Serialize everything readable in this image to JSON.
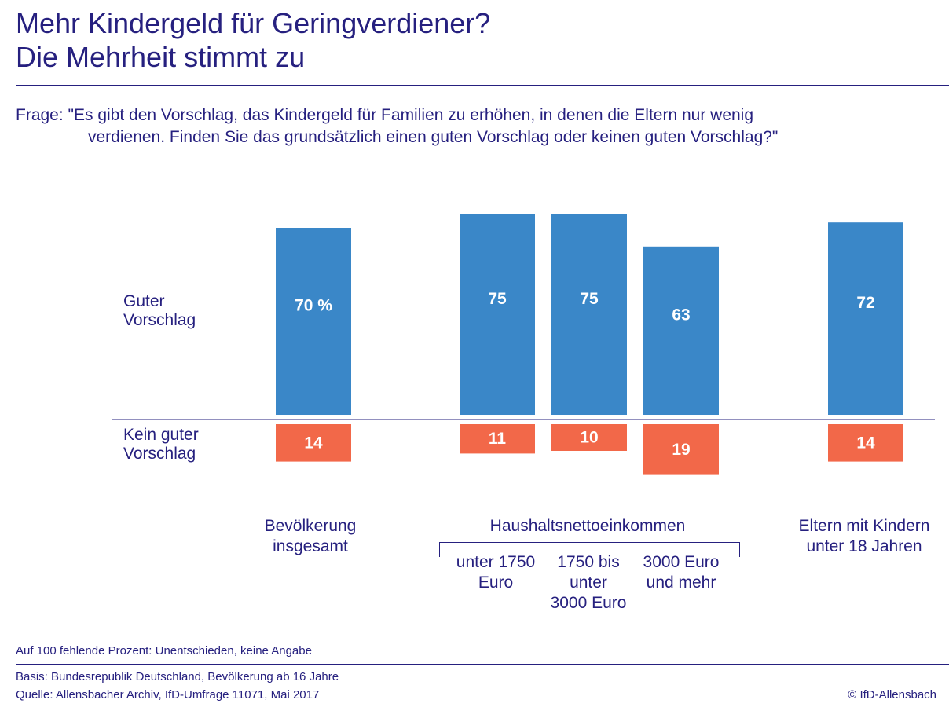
{
  "title": {
    "line1": "Mehr Kindergeld für Geringverdiener?",
    "line2": "Die Mehrheit stimmt zu"
  },
  "question": {
    "prefix": "Frage: ",
    "line1": "\"Es gibt den Vorschlag, das Kindergeld für Familien zu erhöhen, in denen die Eltern nur wenig",
    "line2": "verdienen. Finden Sie das grundsätzlich einen guten Vorschlag oder keinen guten Vorschlag?\""
  },
  "labels": {
    "guter_line1": "Guter",
    "guter_line2": "Vorschlag",
    "kein_line1": "Kein guter",
    "kein_line2": "Vorschlag"
  },
  "categories": {
    "gesamt": [
      "Bevölkerung",
      "insgesamt"
    ],
    "einkommen_header": "Haushaltsnettoeinkommen",
    "unter1750": [
      "unter 1750",
      "Euro"
    ],
    "bis3000": [
      "1750 bis",
      "unter",
      "3000 Euro"
    ],
    "mehr3000": [
      "3000 Euro",
      "und mehr"
    ],
    "eltern": [
      "Eltern mit Kindern",
      "unter 18 Jahren"
    ]
  },
  "footer": {
    "note": "Auf 100 fehlende Prozent: Unentschieden, keine Angabe",
    "basis": "Basis: Bundesrepublik Deutschland, Bevölkerung ab 16 Jahre",
    "quelle": "Quelle: Allensbacher Archiv, IfD-Umfrage 11071, Mai 2017",
    "copyright": "© IfD-Allensbach"
  },
  "colors": {
    "positive": "#3a87c8",
    "negative": "#f26849",
    "text": "#26207f"
  },
  "chart_data": {
    "type": "bar",
    "title": "Mehr Kindergeld für Geringverdiener? Die Mehrheit stimmt zu",
    "unit": "%",
    "categories": [
      "Bevölkerung insgesamt",
      "unter 1750 Euro",
      "1750 bis unter 3000 Euro",
      "3000 Euro und mehr",
      "Eltern mit Kindern unter 18 Jahren"
    ],
    "series": [
      {
        "name": "Guter Vorschlag",
        "values": [
          70,
          75,
          75,
          63,
          72
        ],
        "labels": [
          "70 %",
          "75",
          "75",
          "63",
          "72"
        ]
      },
      {
        "name": "Kein guter Vorschlag",
        "values": [
          14,
          11,
          10,
          19,
          14
        ],
        "labels": [
          "14",
          "11",
          "10",
          "19",
          "14"
        ]
      }
    ]
  }
}
